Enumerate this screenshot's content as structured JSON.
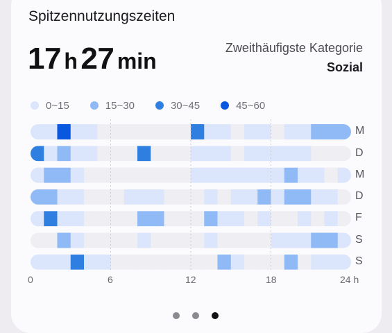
{
  "title": "Spitzennutzungszeiten",
  "total": {
    "hours": "17",
    "hours_unit": "h",
    "minutes": "27",
    "minutes_unit": "min"
  },
  "category": {
    "label": "Zweithäufigste Kategorie",
    "value": "Sozial"
  },
  "legend": [
    {
      "label": "0~15",
      "color": "#dbe5fb"
    },
    {
      "label": "15~30",
      "color": "#8fbaf5"
    },
    {
      "label": "30~45",
      "color": "#2f7fe0"
    },
    {
      "label": "45~60",
      "color": "#0a57e0"
    }
  ],
  "colors": {
    "empty": "#efeff3",
    "level1": "#dbe5fb",
    "level2": "#8fbaf5",
    "level3": "#2f7fe0",
    "level4": "#0a57e0"
  },
  "chart_data": {
    "type": "heatmap",
    "x_axis": {
      "ticks": [
        "0",
        "6",
        "12",
        "18",
        "24 h"
      ],
      "range": [
        0,
        24
      ],
      "unit": "hour"
    },
    "y_categories": [
      "M",
      "D",
      "M",
      "D",
      "F",
      "S",
      "S"
    ],
    "value_bins": [
      "0~15",
      "15~30",
      "30~45",
      "45~60"
    ],
    "levels_by_hour": [
      [
        1,
        1,
        4,
        1,
        1,
        0,
        0,
        0,
        0,
        0,
        0,
        0,
        3,
        1,
        1,
        0,
        1,
        1,
        0,
        1,
        1,
        2,
        2,
        2
      ],
      [
        3,
        1,
        2,
        1,
        1,
        0,
        0,
        0,
        3,
        0,
        0,
        0,
        1,
        1,
        1,
        0,
        1,
        1,
        1,
        1,
        1,
        0,
        0,
        0
      ],
      [
        1,
        2,
        2,
        1,
        0,
        0,
        0,
        0,
        0,
        0,
        0,
        0,
        1,
        1,
        1,
        1,
        1,
        1,
        1,
        2,
        1,
        1,
        0,
        1
      ],
      [
        2,
        2,
        1,
        1,
        0,
        0,
        0,
        1,
        1,
        1,
        0,
        0,
        0,
        1,
        0,
        1,
        1,
        2,
        1,
        2,
        2,
        1,
        1,
        0
      ],
      [
        1,
        3,
        1,
        1,
        0,
        0,
        0,
        0,
        2,
        2,
        0,
        0,
        0,
        2,
        1,
        1,
        0,
        1,
        0,
        0,
        1,
        0,
        1,
        0
      ],
      [
        0,
        0,
        2,
        1,
        0,
        0,
        0,
        0,
        1,
        0,
        0,
        0,
        0,
        1,
        0,
        0,
        0,
        0,
        1,
        1,
        1,
        2,
        2,
        1
      ],
      [
        1,
        1,
        1,
        3,
        1,
        1,
        0,
        0,
        0,
        0,
        0,
        0,
        0,
        0,
        2,
        1,
        0,
        0,
        0,
        2,
        0,
        1,
        1,
        1
      ]
    ]
  },
  "pager": [
    false,
    false,
    true
  ]
}
